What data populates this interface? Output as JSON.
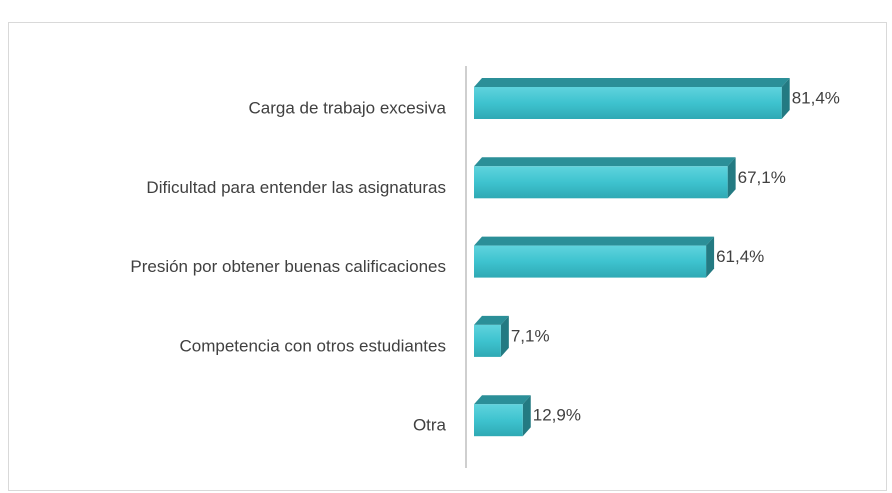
{
  "chart_data": {
    "type": "bar",
    "orientation": "horizontal",
    "categories": [
      "Carga de trabajo excesiva",
      "Dificultad para entender las asignaturas",
      "Presión por obtener buenas calificaciones",
      "Competencia con otros estudiantes",
      "Otra"
    ],
    "values": [
      81.4,
      67.1,
      61.4,
      7.1,
      12.9
    ],
    "value_labels": [
      "81,4%",
      "67,1%",
      "61,4%",
      "7,1%",
      "12,9%"
    ],
    "color": "#3ec3cf",
    "xlim": [
      0,
      100
    ]
  }
}
